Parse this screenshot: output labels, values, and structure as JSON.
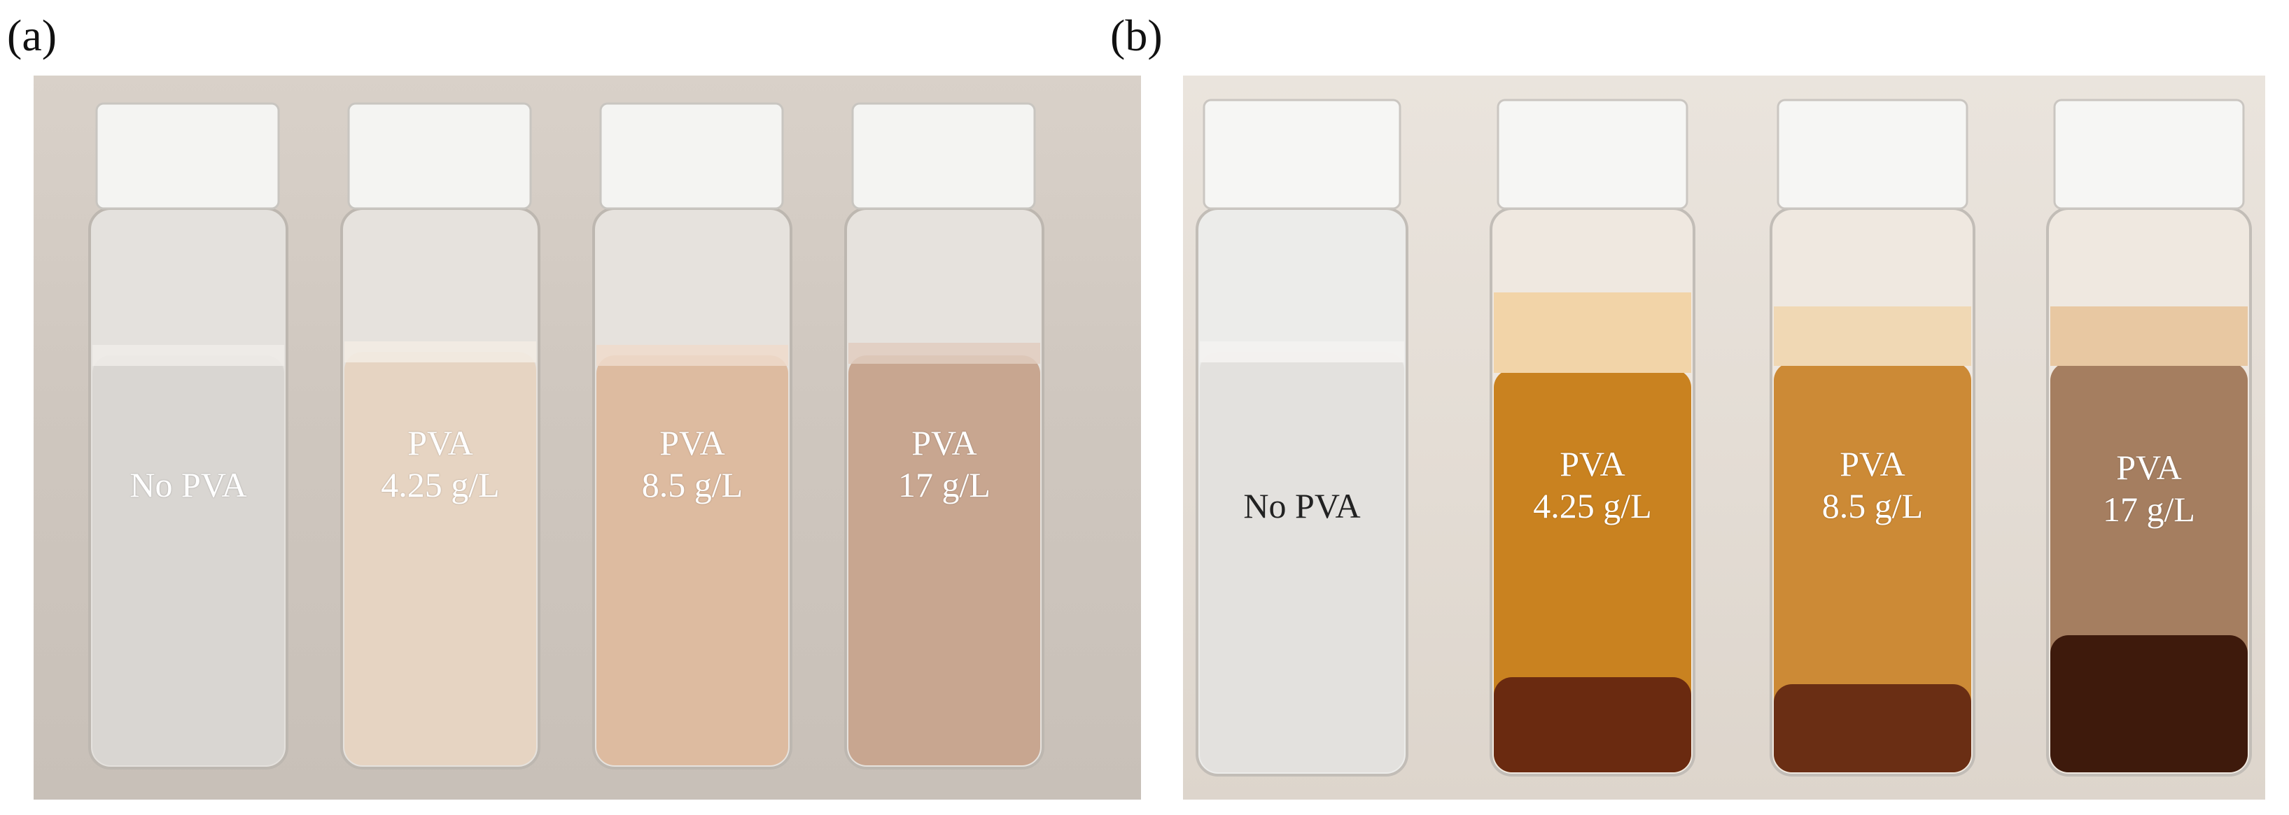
{
  "panels": {
    "a": {
      "label": "(a)",
      "vials": [
        {
          "line1": "No PVA",
          "line2": ""
        },
        {
          "line1": "PVA",
          "line2": "4.25 g/L"
        },
        {
          "line1": "PVA",
          "line2": "8.5 g/L"
        },
        {
          "line1": "PVA",
          "line2": "17 g/L"
        }
      ]
    },
    "b": {
      "label": "(b)",
      "vials": [
        {
          "line1": "No PVA",
          "line2": ""
        },
        {
          "line1": "PVA",
          "line2": "4.25 g/L"
        },
        {
          "line1": "PVA",
          "line2": "8.5 g/L"
        },
        {
          "line1": "PVA",
          "line2": "17 g/L"
        }
      ]
    }
  },
  "colors": {
    "cap": "#f4f4f2",
    "glass": "#e9e6e2",
    "a_liquid": [
      "#dcd6cf",
      "#e6d4c2",
      "#ddbba0",
      "#c8a690"
    ],
    "b_liquid": [
      "#e3e1de",
      "#c98220",
      "#cc8a36",
      "#a57e60"
    ],
    "b_sediment": [
      "#e3e1de",
      "#6a2a10",
      "#6a2e14",
      "#3e1a0c"
    ]
  }
}
